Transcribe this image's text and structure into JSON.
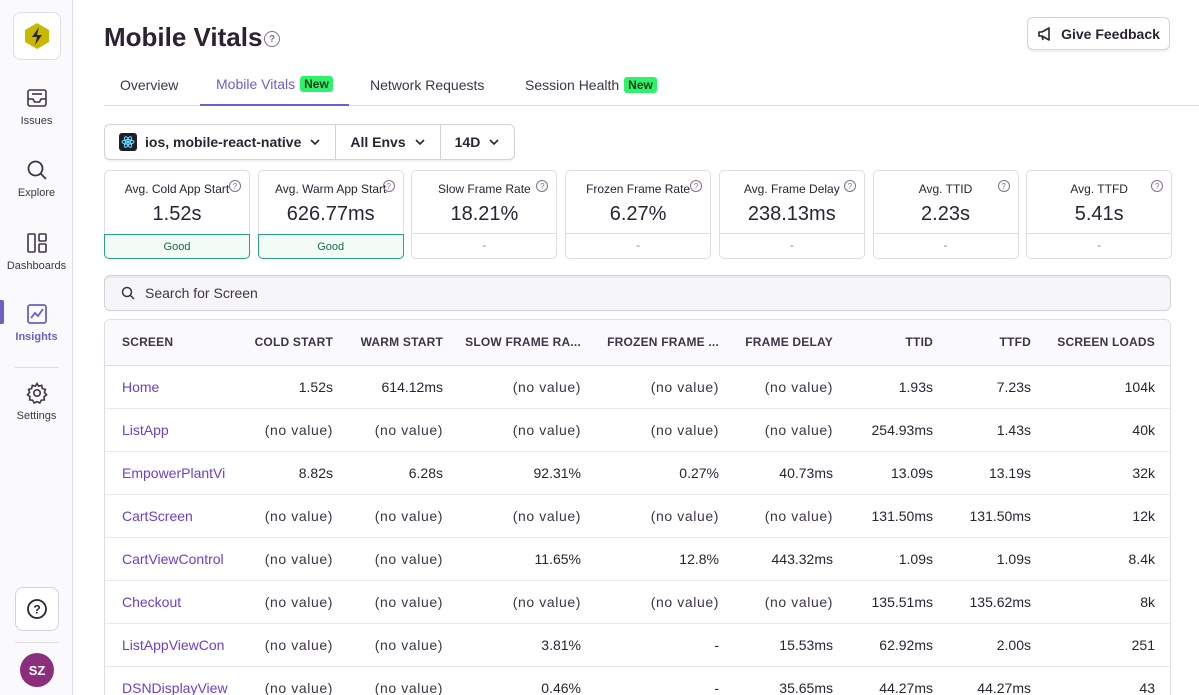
{
  "sidebar": {
    "items": [
      {
        "label": "Issues",
        "icon": "inbox-icon"
      },
      {
        "label": "Explore",
        "icon": "search-icon"
      },
      {
        "label": "Dashboards",
        "icon": "dashboard-icon"
      },
      {
        "label": "Insights",
        "icon": "chart-icon"
      },
      {
        "label": "Settings",
        "icon": "gear-icon"
      }
    ],
    "active": "Insights",
    "help_icon": "?",
    "avatar": "SZ"
  },
  "header": {
    "title": "Mobile Vitals",
    "help_icon": "?",
    "feedback_label": "Give Feedback"
  },
  "tabs": [
    {
      "label": "Overview",
      "badge": ""
    },
    {
      "label": "Mobile Vitals",
      "badge": "New"
    },
    {
      "label": "Network Requests",
      "badge": ""
    },
    {
      "label": "Session Health",
      "badge": "New"
    }
  ],
  "filters": {
    "project": "ios, mobile-react-native",
    "env": "All Envs",
    "period": "14D"
  },
  "metrics": [
    {
      "title": "Avg. Cold App Start",
      "value": "1.52s",
      "status": "Good"
    },
    {
      "title": "Avg. Warm App Start",
      "value": "626.77ms",
      "status": "Good"
    },
    {
      "title": "Slow Frame Rate",
      "value": "18.21%",
      "status": "-"
    },
    {
      "title": "Frozen Frame Rate",
      "value": "6.27%",
      "status": "-"
    },
    {
      "title": "Avg. Frame Delay",
      "value": "238.13ms",
      "status": "-"
    },
    {
      "title": "Avg. TTID",
      "value": "2.23s",
      "status": "-"
    },
    {
      "title": "Avg. TTFD",
      "value": "5.41s",
      "status": "-"
    }
  ],
  "search": {
    "placeholder": "Search for Screen"
  },
  "table": {
    "columns": [
      "SCREEN",
      "COLD START",
      "WARM START",
      "SLOW FRAME RA...",
      "FROZEN FRAME ...",
      "FRAME DELAY",
      "TTID",
      "TTFD",
      "SCREEN LOADS"
    ],
    "rows": [
      [
        "Home",
        "1.52s",
        "614.12ms",
        "(no value)",
        "(no value)",
        "(no value)",
        "1.93s",
        "7.23s",
        "104k"
      ],
      [
        "ListApp",
        "(no value)",
        "(no value)",
        "(no value)",
        "(no value)",
        "(no value)",
        "254.93ms",
        "1.43s",
        "40k"
      ],
      [
        "EmpowerPlantVi",
        "8.82s",
        "6.28s",
        "92.31%",
        "0.27%",
        "40.73ms",
        "13.09s",
        "13.19s",
        "32k"
      ],
      [
        "CartScreen",
        "(no value)",
        "(no value)",
        "(no value)",
        "(no value)",
        "(no value)",
        "131.50ms",
        "131.50ms",
        "12k"
      ],
      [
        "CartViewControl",
        "(no value)",
        "(no value)",
        "11.65%",
        "12.8%",
        "443.32ms",
        "1.09s",
        "1.09s",
        "8.4k"
      ],
      [
        "Checkout",
        "(no value)",
        "(no value)",
        "(no value)",
        "(no value)",
        "(no value)",
        "135.51ms",
        "135.62ms",
        "8k"
      ],
      [
        "ListAppViewCon",
        "(no value)",
        "(no value)",
        "3.81%",
        "-",
        "15.53ms",
        "62.92ms",
        "2.00s",
        "251"
      ],
      [
        "DSNDisplayView",
        "(no value)",
        "(no value)",
        "0.46%",
        "-",
        "35.65ms",
        "44.27ms",
        "44.27ms",
        "43"
      ]
    ]
  },
  "colors": {
    "accent": "#6c5fc7",
    "good": "#2ba185",
    "link": "#6c3fcf",
    "badge": "#2ff26b"
  }
}
